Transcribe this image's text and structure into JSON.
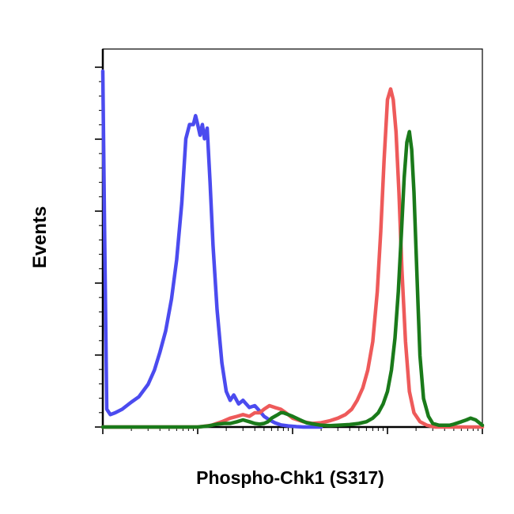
{
  "chart_data": {
    "type": "line",
    "title": "",
    "xlabel": "Phospho-Chk1 (S317)",
    "ylabel": "Events",
    "x_scale": "log",
    "xlim": [
      1,
      10000
    ],
    "ylim": [
      0,
      100
    ],
    "grid": false,
    "legend": "none",
    "series": [
      {
        "color": "#4b4bef",
        "x": [
          1,
          1.04,
          1.1,
          1.2,
          1.35,
          1.6,
          2,
          2.4,
          3,
          3.5,
          4,
          4.6,
          5.3,
          6,
          6.8,
          7.5,
          8.2,
          9,
          9.5,
          10,
          10.6,
          11.2,
          11.8,
          12.6,
          13.5,
          14.5,
          16,
          18,
          20,
          22,
          24,
          27,
          30,
          35,
          40,
          45,
          50,
          57,
          65,
          75,
          90,
          110,
          130,
          160,
          200
        ],
        "y": [
          100,
          60,
          5,
          3.5,
          4,
          5,
          7,
          8.5,
          12,
          16,
          21,
          27,
          36,
          47,
          63,
          81,
          85,
          85,
          87.5,
          85,
          82,
          85,
          81,
          84,
          69,
          51,
          33,
          18,
          10,
          7.5,
          9,
          6.5,
          7.5,
          5.5,
          6,
          4.5,
          3,
          2,
          1.2,
          0.6,
          0.3,
          0.1,
          0,
          0,
          0
        ]
      },
      {
        "color": "#ee5a5a",
        "x": [
          1,
          5,
          10,
          14,
          18,
          22,
          26,
          30,
          35,
          40,
          45,
          50,
          57,
          65,
          75,
          85,
          100,
          130,
          160,
          200,
          250,
          300,
          360,
          420,
          480,
          550,
          620,
          700,
          780,
          850,
          920,
          1000,
          1080,
          1150,
          1230,
          1320,
          1420,
          1550,
          1700,
          1900,
          2200,
          2600,
          3200,
          4000,
          5000,
          6500,
          8000,
          10000
        ],
        "y": [
          0,
          0,
          0,
          0.5,
          1.5,
          2.5,
          3,
          3.5,
          3,
          4,
          4,
          5,
          6,
          5.5,
          5,
          4,
          2.5,
          1.5,
          1,
          1.2,
          1.8,
          2.5,
          3.5,
          5,
          7.5,
          11,
          16,
          24,
          38,
          55,
          75,
          92,
          95,
          92,
          83,
          66,
          44,
          24,
          10,
          4,
          1.5,
          0.5,
          0,
          0,
          0,
          0,
          0,
          0
        ]
      },
      {
        "color": "#1a7a1a",
        "x": [
          1,
          5,
          10,
          13,
          16,
          19,
          22,
          26,
          30,
          35,
          40,
          45,
          50,
          55,
          60,
          65,
          70,
          75,
          80,
          90,
          100,
          120,
          140,
          170,
          200,
          250,
          300,
          400,
          500,
          600,
          700,
          800,
          900,
          1000,
          1100,
          1200,
          1300,
          1400,
          1500,
          1600,
          1700,
          1800,
          1900,
          2000,
          2100,
          2200,
          2400,
          2700,
          3000,
          3500,
          4000,
          4500,
          5000,
          6000,
          6800,
          7500,
          8500,
          10000
        ],
        "y": [
          0,
          0,
          0,
          0.3,
          0.8,
          1,
          1,
          1.5,
          2,
          1.5,
          1,
          0.8,
          1,
          1.5,
          2.5,
          3,
          3.5,
          4,
          4,
          3.5,
          3,
          2,
          1.2,
          0.8,
          0.5,
          0.4,
          0.5,
          0.7,
          1,
          1.5,
          2.5,
          4,
          6.5,
          10,
          16,
          25,
          38,
          54,
          70,
          80,
          83,
          78,
          66,
          50,
          34,
          20,
          8,
          3,
          1,
          0.5,
          0.5,
          0.5,
          0.8,
          1.5,
          2,
          2.5,
          2,
          0.5
        ]
      }
    ]
  }
}
